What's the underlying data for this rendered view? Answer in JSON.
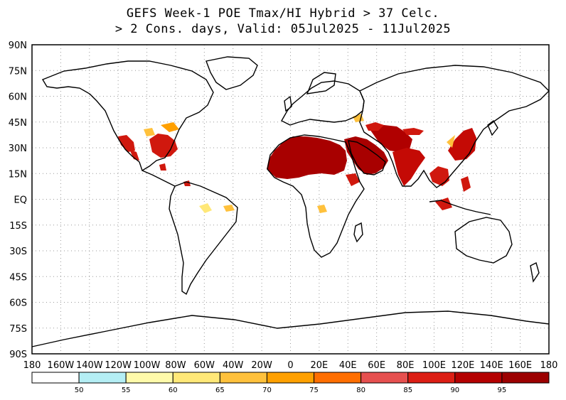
{
  "title_line1": "GEFS Week-1 POE Tmax/HI Hybrid > 37 Celc.",
  "title_line2": "> 2 Cons. days, Valid: 05Jul2025 - 11Jul2025",
  "lat_labels": [
    "90N",
    "75N",
    "60N",
    "45N",
    "30N",
    "15N",
    "EQ",
    "15S",
    "30S",
    "45S",
    "60S",
    "75S",
    "90S"
  ],
  "lon_labels": [
    "180",
    "160W",
    "140W",
    "120W",
    "100W",
    "80W",
    "60W",
    "40W",
    "20W",
    "0",
    "20E",
    "40E",
    "60E",
    "80E",
    "100E",
    "120E",
    "140E",
    "160E",
    "180"
  ],
  "colorbar": {
    "thresholds": [
      "50",
      "55",
      "60",
      "65",
      "70",
      "75",
      "80",
      "85",
      "90",
      "95"
    ],
    "colors": [
      "#ffffff",
      "#b4eef4",
      "#fffaaa",
      "#ffe878",
      "#ffc13c",
      "#ffa000",
      "#ff6e00",
      "#e6504f",
      "#dc1e14",
      "#b40000",
      "#9c0000"
    ]
  },
  "colors": {
    "land_outline": "#000000",
    "grid": "#9a9a9a",
    "hot_core": "#a80000",
    "hot": "#d0180e",
    "warm": "#ff6e00",
    "mild": "#ffc13c",
    "light": "#ffe878"
  },
  "icons": {
    "map": "world-map-lat-lon"
  }
}
